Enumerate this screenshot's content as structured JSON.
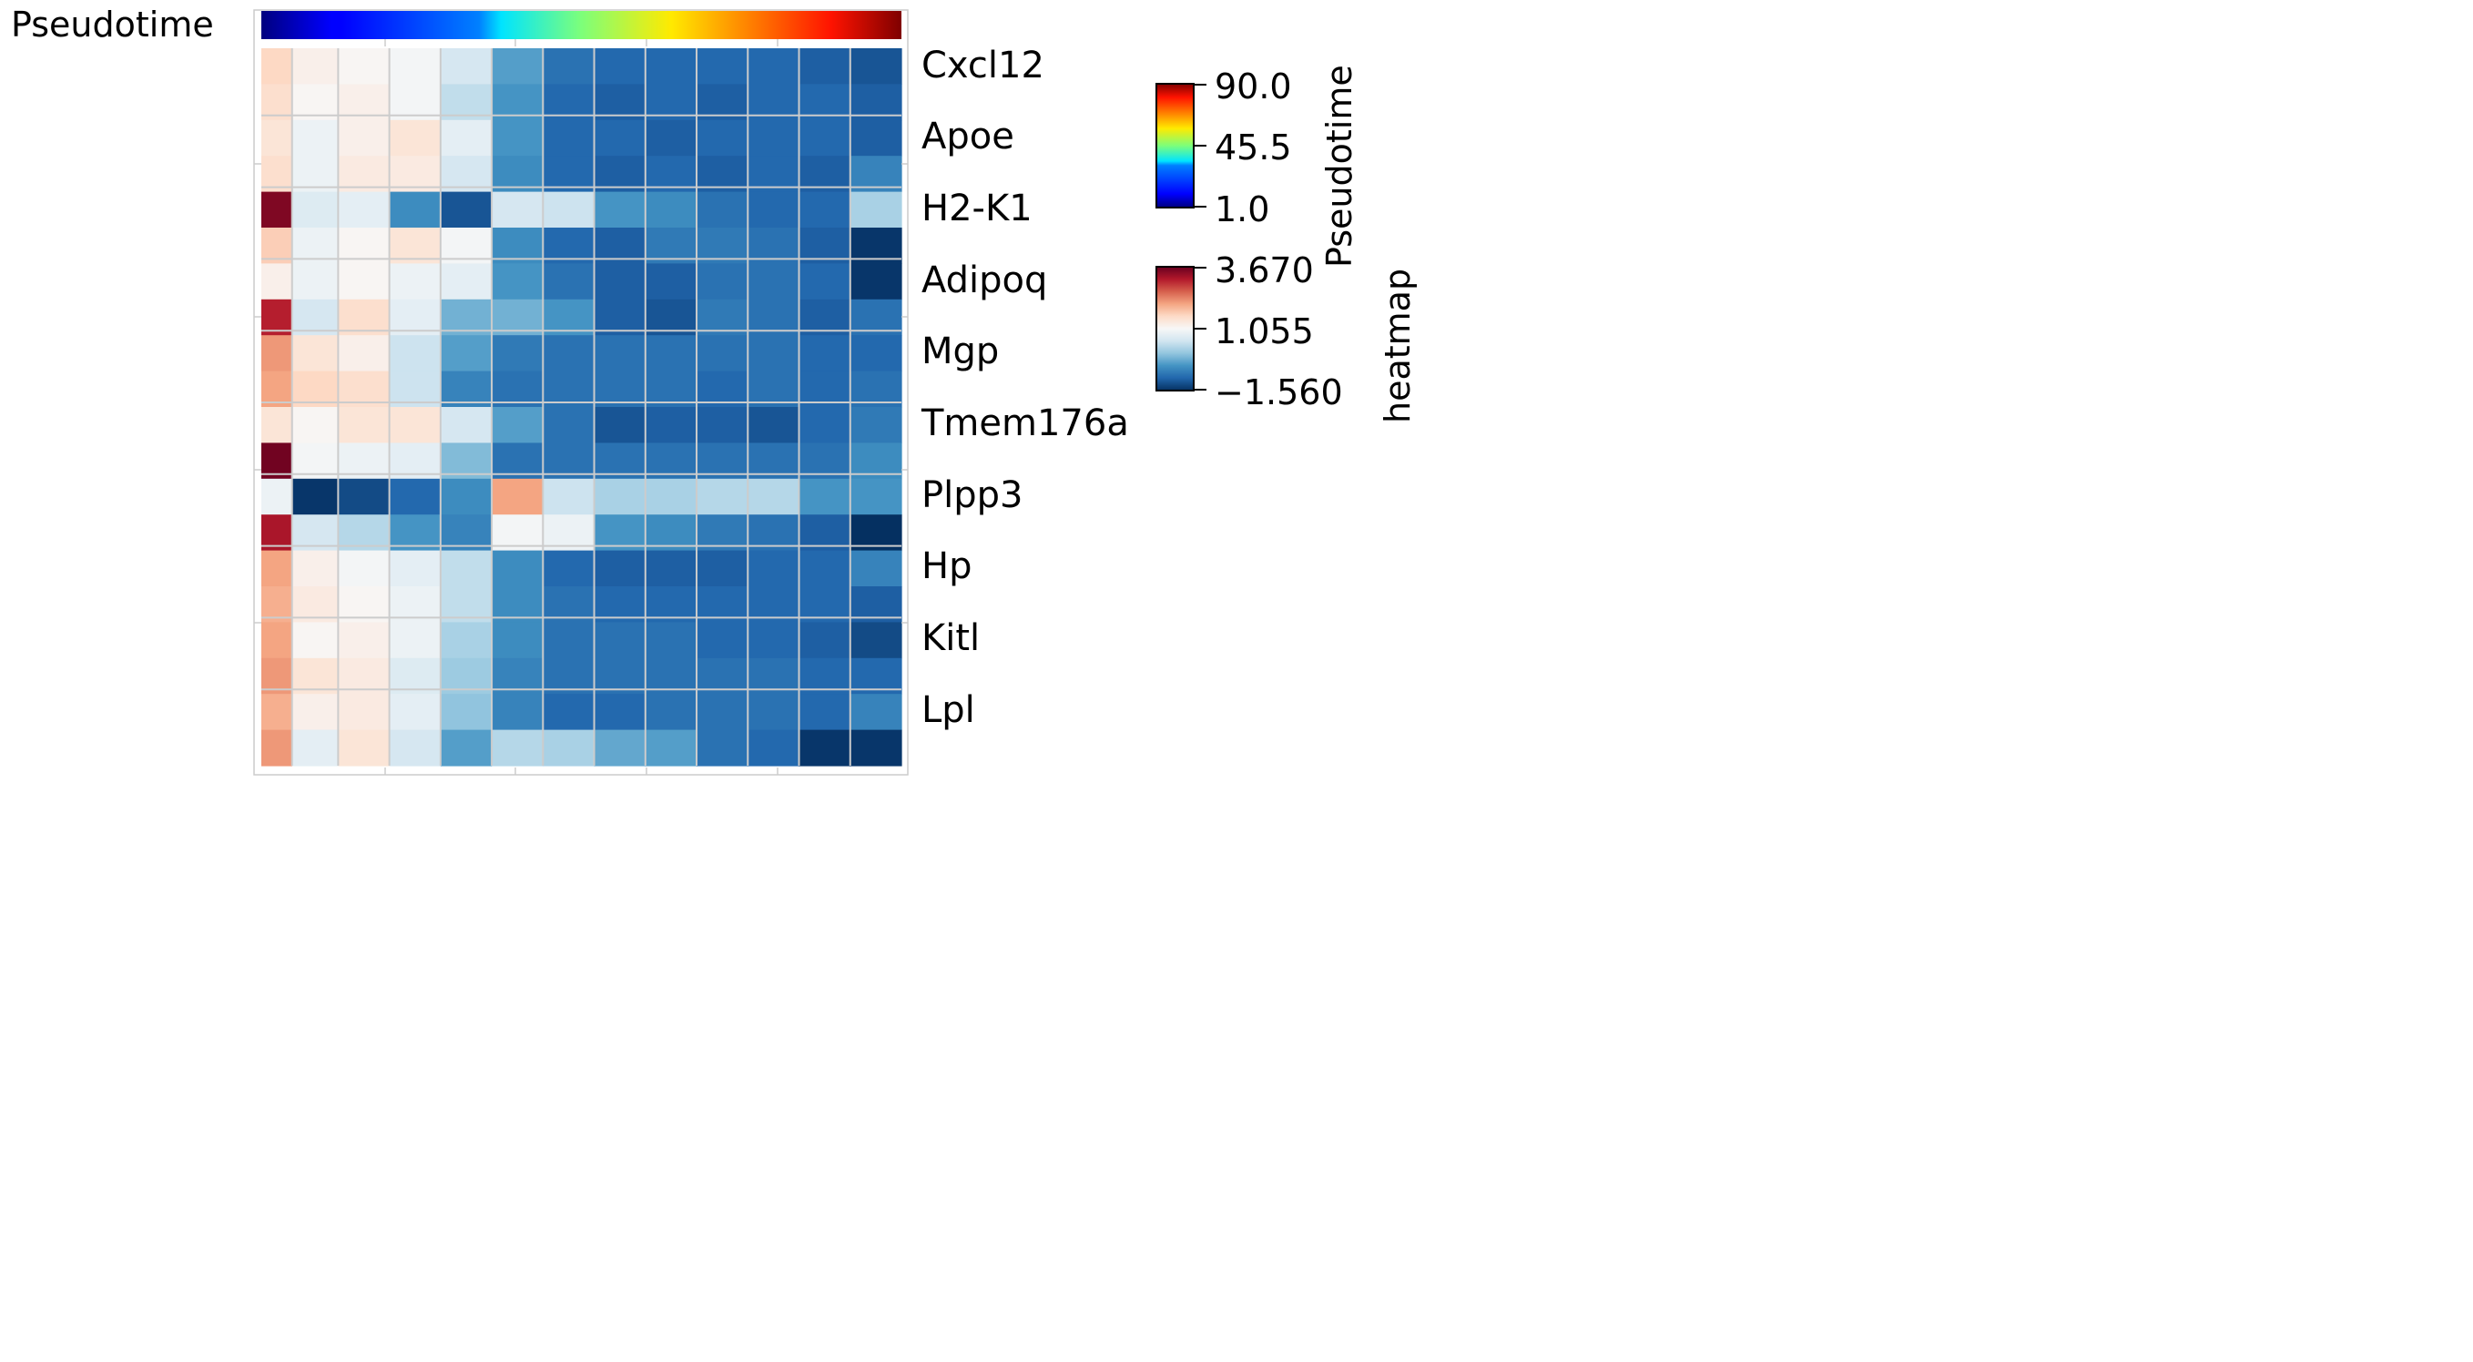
{
  "chart_data": {
    "type": "heatmap",
    "annotation_row": {
      "label": "Pseudotime",
      "colormap": "jet"
    },
    "genes": [
      "Cxcl12",
      "Apoe",
      "H2-K1",
      "Adipoq",
      "Mgp",
      "Tmem176a",
      "Plpp3",
      "Hp",
      "Kitl",
      "Lpl"
    ],
    "n_columns": 13,
    "n_rows": 20,
    "column_widths_relative": [
      0.6,
      0.9,
      1,
      1,
      1,
      1,
      1,
      1,
      1,
      1,
      1,
      1,
      1
    ],
    "values": [
      [
        1.6,
        1.2,
        1.1,
        1.0,
        0.6,
        -0.4,
        -0.9,
        -1.0,
        -1.0,
        -1.0,
        -1.0,
        -1.1,
        -1.2
      ],
      [
        1.5,
        1.1,
        1.2,
        1.0,
        0.4,
        -0.5,
        -1.0,
        -1.1,
        -1.0,
        -1.1,
        -1.0,
        -1.0,
        -1.1
      ],
      [
        1.4,
        0.9,
        1.2,
        1.4,
        0.8,
        -0.5,
        -1.0,
        -1.0,
        -1.1,
        -1.0,
        -1.0,
        -1.0,
        -1.1
      ],
      [
        1.5,
        0.9,
        1.3,
        1.3,
        0.6,
        -0.6,
        -1.0,
        -1.1,
        -1.0,
        -1.1,
        -1.0,
        -1.1,
        -0.7
      ],
      [
        3.5,
        0.7,
        0.8,
        -0.6,
        -1.2,
        0.6,
        0.5,
        -0.5,
        -0.6,
        -0.9,
        -1.0,
        -1.0,
        0.2
      ],
      [
        1.7,
        0.9,
        1.1,
        1.4,
        1.0,
        -0.6,
        -1.0,
        -1.1,
        -0.8,
        -0.8,
        -0.9,
        -1.1,
        -1.5
      ],
      [
        1.2,
        0.9,
        1.1,
        0.9,
        0.8,
        -0.5,
        -0.9,
        -1.1,
        -1.1,
        -0.9,
        -0.9,
        -1.0,
        -1.5
      ],
      [
        3.1,
        0.6,
        1.5,
        0.8,
        -0.2,
        -0.2,
        -0.5,
        -1.1,
        -1.2,
        -0.8,
        -0.9,
        -1.1,
        -0.9
      ],
      [
        2.2,
        1.4,
        1.2,
        0.5,
        -0.4,
        -0.8,
        -0.9,
        -0.9,
        -0.9,
        -0.9,
        -0.9,
        -1.0,
        -1.0
      ],
      [
        2.1,
        1.6,
        1.5,
        0.5,
        -0.7,
        -0.9,
        -0.9,
        -0.9,
        -0.9,
        -1.0,
        -0.9,
        -1.0,
        -0.9
      ],
      [
        1.4,
        1.1,
        1.4,
        1.4,
        0.6,
        -0.4,
        -0.9,
        -1.2,
        -1.1,
        -1.1,
        -1.2,
        -1.0,
        -0.8
      ],
      [
        3.6,
        1.0,
        0.9,
        0.8,
        -0.1,
        -0.9,
        -0.9,
        -0.9,
        -0.9,
        -0.9,
        -0.9,
        -0.9,
        -0.6
      ],
      [
        0.9,
        -1.5,
        -1.3,
        -1.0,
        -0.6,
        2.1,
        0.5,
        0.2,
        0.2,
        0.3,
        0.3,
        -0.5,
        -0.5
      ],
      [
        3.2,
        0.6,
        0.3,
        -0.5,
        -0.7,
        1.0,
        0.9,
        -0.5,
        -0.6,
        -0.8,
        -0.9,
        -1.1,
        -1.6
      ],
      [
        2.1,
        1.2,
        1.0,
        0.8,
        0.4,
        -0.6,
        -1.0,
        -1.1,
        -1.1,
        -1.1,
        -1.0,
        -1.0,
        -0.7
      ],
      [
        2.0,
        1.3,
        1.1,
        0.9,
        0.4,
        -0.6,
        -0.9,
        -1.0,
        -1.0,
        -1.0,
        -1.0,
        -1.0,
        -1.1
      ],
      [
        2.1,
        1.1,
        1.2,
        0.9,
        0.2,
        -0.6,
        -0.9,
        -0.9,
        -0.9,
        -1.0,
        -1.0,
        -1.1,
        -1.3
      ],
      [
        2.2,
        1.4,
        1.3,
        0.7,
        0.1,
        -0.7,
        -0.9,
        -0.9,
        -0.9,
        -0.9,
        -0.9,
        -1.0,
        -1.0
      ],
      [
        2.0,
        1.2,
        1.3,
        0.8,
        0.0,
        -0.7,
        -1.0,
        -1.0,
        -0.9,
        -0.9,
        -0.9,
        -1.0,
        -0.7
      ],
      [
        2.2,
        0.8,
        1.4,
        0.6,
        -0.4,
        0.3,
        0.2,
        -0.3,
        -0.4,
        -0.9,
        -1.0,
        -1.5,
        -1.5
      ]
    ],
    "colorbars": [
      {
        "title": "Pseudotime",
        "colormap": "jet",
        "ticks": [
          "90.0",
          "45.5",
          "1.0"
        ]
      },
      {
        "title": "heatmap",
        "colormap": "RdBu_r",
        "ticks": [
          "3.670",
          "1.055",
          "−1.560"
        ]
      }
    ],
    "vmin": -1.56,
    "vmax": 3.67
  }
}
